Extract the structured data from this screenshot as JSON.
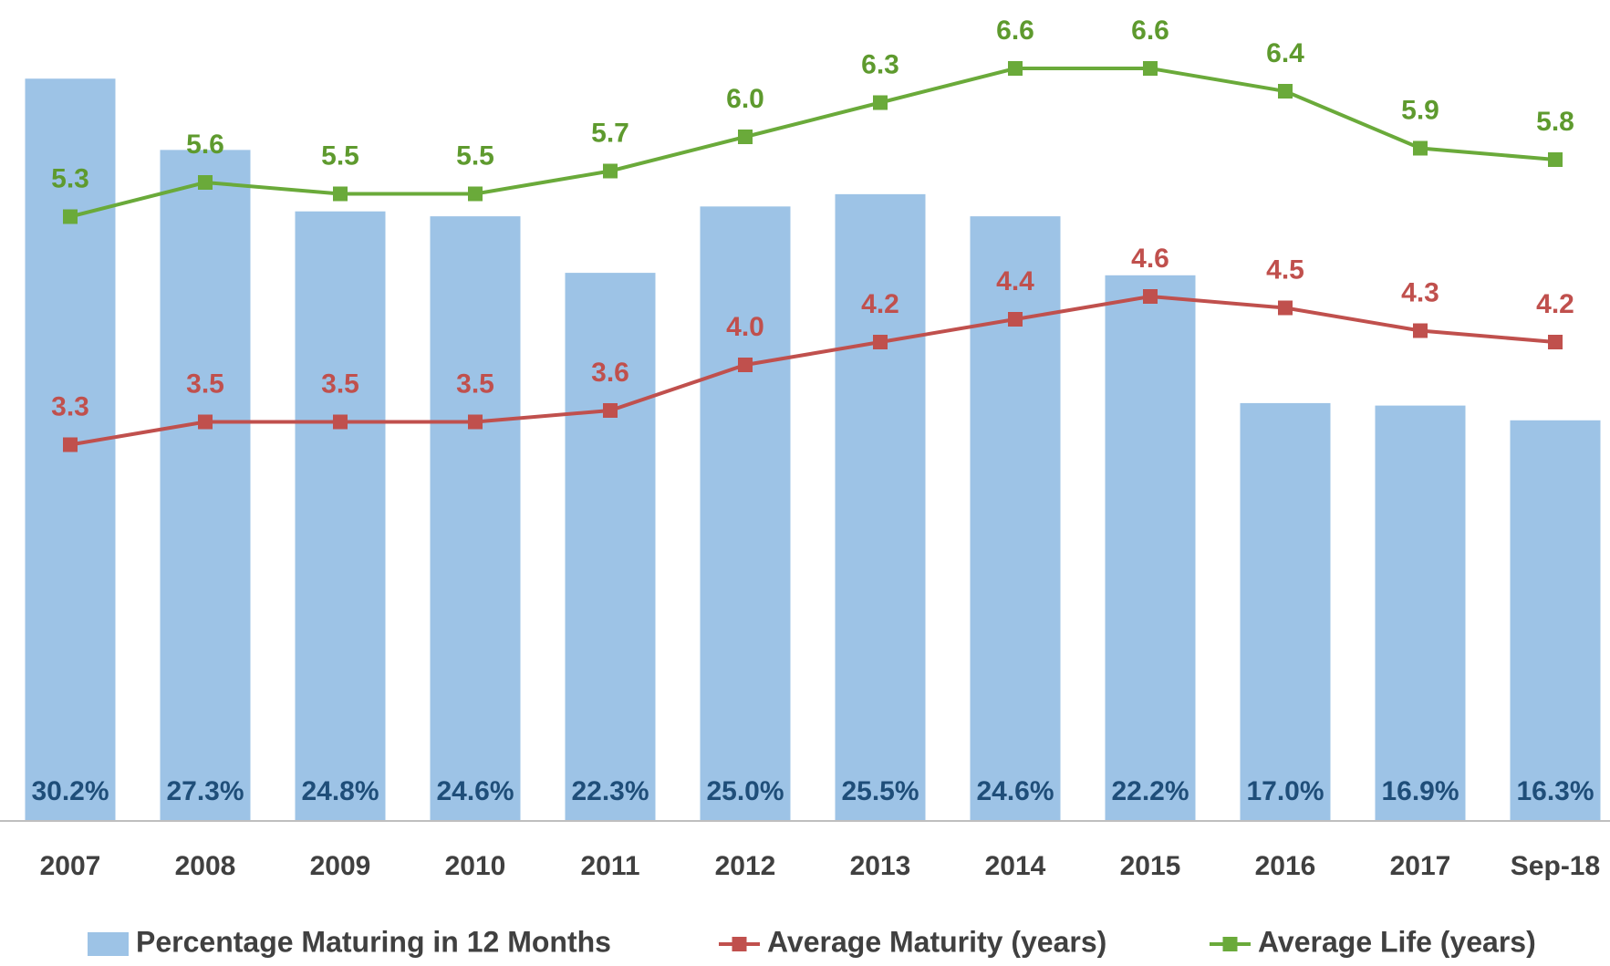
{
  "chart_data": {
    "type": "combo",
    "categories": [
      "2007",
      "2008",
      "2009",
      "2010",
      "2011",
      "2012",
      "2013",
      "2014",
      "2015",
      "2016",
      "2017",
      "Sep-18"
    ],
    "ylim": [
      0,
      33.4
    ],
    "y2lim": [
      0,
      7.2
    ],
    "legend": "bottom",
    "series": [
      {
        "name": "Percentage Maturing in 12 Months",
        "type": "bar",
        "color": "#9dc3e6",
        "label_color": "#1f4e79",
        "values": [
          30.2,
          27.3,
          24.8,
          24.6,
          22.3,
          25.0,
          25.5,
          24.6,
          22.2,
          17.0,
          16.9,
          16.3
        ],
        "value_labels": [
          "30.2%",
          "27.3%",
          "24.8%",
          "24.6%",
          "22.3%",
          "25.0%",
          "25.5%",
          "24.6%",
          "22.2%",
          "17.0%",
          "16.9%",
          "16.3%"
        ]
      },
      {
        "name": "Average Maturity (years)",
        "type": "line",
        "axis": "y2",
        "color": "#c0504d",
        "label_color": "#c0504d",
        "values": [
          3.3,
          3.5,
          3.5,
          3.5,
          3.6,
          4.0,
          4.2,
          4.4,
          4.6,
          4.5,
          4.3,
          4.2
        ],
        "value_labels": [
          "3.3",
          "3.5",
          "3.5",
          "3.5",
          "3.6",
          "4.0",
          "4.2",
          "4.4",
          "4.6",
          "4.5",
          "4.3",
          "4.2"
        ]
      },
      {
        "name": "Average Life (years)",
        "type": "line",
        "axis": "y2",
        "color": "#6aaa3a",
        "label_color": "#5e9a2e",
        "values": [
          5.3,
          5.6,
          5.5,
          5.5,
          5.7,
          6.0,
          6.3,
          6.6,
          6.6,
          6.4,
          5.9,
          5.8
        ],
        "value_labels": [
          "5.3",
          "5.6",
          "5.5",
          "5.5",
          "5.7",
          "6.0",
          "6.3",
          "6.6",
          "6.6",
          "6.4",
          "5.9",
          "5.8"
        ]
      }
    ]
  }
}
